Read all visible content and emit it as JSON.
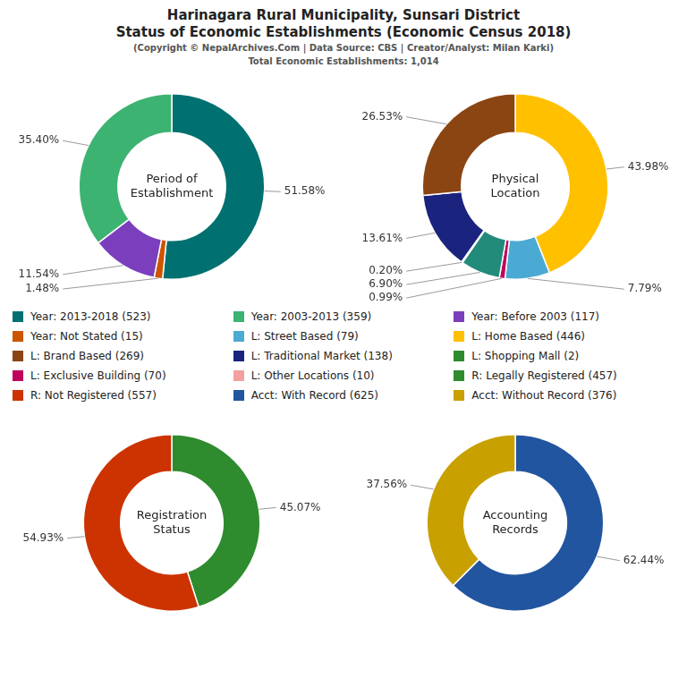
{
  "title": [
    "Harinagara Rural Municipality, Sunsari District",
    "Status of Economic Establishments (Economic Census 2018)"
  ],
  "subtitle": [
    "(Copyright © NepalArchives.Com | Data Source: CBS | Creator/Analyst: Milan Karki)",
    "Total Economic Establishments: 1,014"
  ],
  "legend_items": [
    {
      "name": "Year: 2013-2018 (523)",
      "color": "#007070"
    },
    {
      "name": "Year: 2003-2013 (359)",
      "color": "#3CB371"
    },
    {
      "name": "Year: Before 2003 (117)",
      "color": "#7B3FBE"
    },
    {
      "name": "Year: Not Stated (15)",
      "color": "#CC5500"
    },
    {
      "name": "L: Street Based (79)",
      "color": "#4BAAD4"
    },
    {
      "name": "L: Home Based (446)",
      "color": "#FFC000"
    },
    {
      "name": "L: Brand Based (269)",
      "color": "#8B4513"
    },
    {
      "name": "L: Traditional Market (138)",
      "color": "#1A237E"
    },
    {
      "name": "L: Shopping Mall (2)",
      "color": "#2E8B2E"
    },
    {
      "name": "L: Exclusive Building (70)",
      "color": "#C0005A"
    },
    {
      "name": "L: Other Locations (10)",
      "color": "#F4A0A0"
    },
    {
      "name": "R: Legally Registered (457)",
      "color": "#2E8B2E"
    },
    {
      "name": "R: Not Registered (557)",
      "color": "#CC3300"
    },
    {
      "name": "Acct: With Record (625)",
      "color": "#2255A0"
    },
    {
      "name": "Acct: Without Record (376)",
      "color": "#C8A000"
    }
  ],
  "chart_data": [
    {
      "type": "doughnut",
      "title": "Period of\nEstablishment",
      "values": [
        51.58,
        1.48,
        11.54,
        35.4
      ],
      "value_labels": [
        "51.58%",
        "1.48%",
        "11.54%",
        "35.40%"
      ],
      "colors": [
        "#007070",
        "#CC5500",
        "#7B3FBE",
        "#3CB371"
      ],
      "data_labels": true
    },
    {
      "type": "doughnut",
      "title": "Physical\nLocation",
      "values": [
        43.98,
        7.79,
        0.99,
        6.9,
        0.2,
        13.61,
        26.53
      ],
      "value_labels": [
        "43.98%",
        "7.79%",
        "0.99%",
        "6.90%",
        "0.20%",
        "13.61%",
        "26.53%"
      ],
      "colors": [
        "#FFC000",
        "#4BAAD4",
        "#C0005A",
        "#228B7A",
        "#BBBBBB",
        "#1A237E",
        "#8B4513"
      ],
      "data_labels": true
    },
    {
      "type": "doughnut",
      "title": "Registration\nStatus",
      "values": [
        45.07,
        54.93
      ],
      "value_labels": [
        "45.07%",
        "54.93%"
      ],
      "colors": [
        "#2E8B2E",
        "#CC3300"
      ],
      "data_labels": true
    },
    {
      "type": "doughnut",
      "title": "Accounting\nRecords",
      "values": [
        62.44,
        37.56
      ],
      "value_labels": [
        "62.44%",
        "37.56%"
      ],
      "colors": [
        "#2255A0",
        "#C8A000"
      ],
      "data_labels": true
    }
  ]
}
